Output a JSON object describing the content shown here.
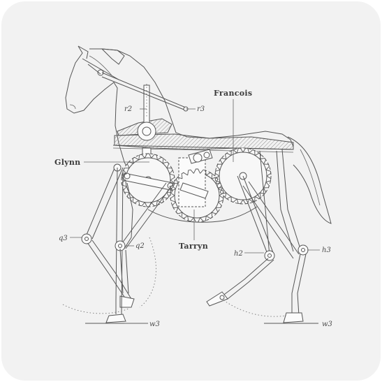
{
  "callouts": {
    "francois": "Francois",
    "glynn": "Glynn",
    "tarryn": "Tarryn"
  },
  "tags": {
    "r2": "r2",
    "r3": "r3",
    "q3": "q3",
    "q2": "q2",
    "h2": "h2",
    "h3": "h3",
    "w3_left": "w3",
    "w3_right": "w3"
  },
  "colors": {
    "card_background": "#f2f2f2",
    "line": "#555555",
    "hatch": "#9a9a9a",
    "label": "#3b3b3b"
  }
}
